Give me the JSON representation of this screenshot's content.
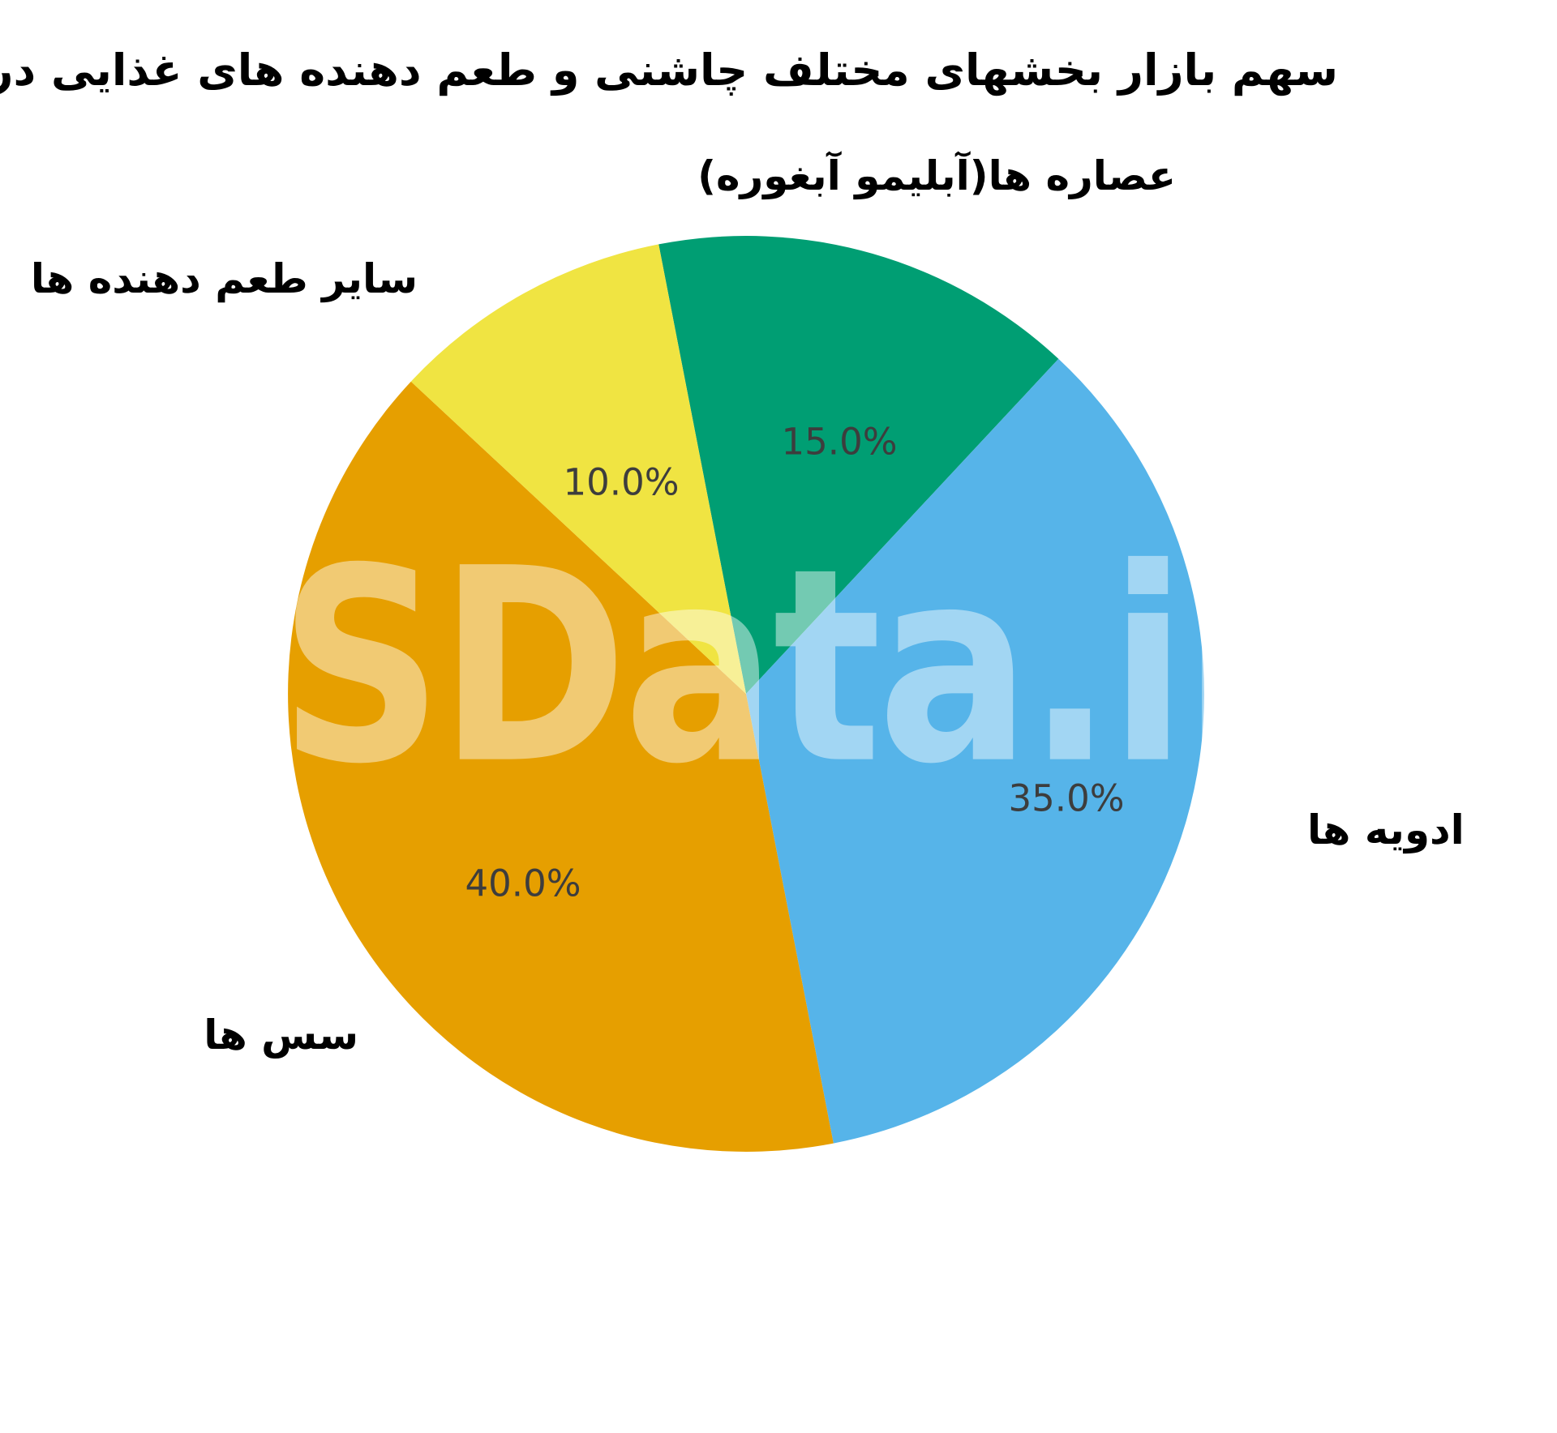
{
  "title": "سهم  بازار بخشهای مختلف چاشنی و طعم دهنده های غذایی در ایران",
  "watermark": "SData.ir",
  "chart_data": {
    "type": "pie",
    "title": "سهم  بازار بخشهای مختلف چاشنی و طعم دهنده های غذایی در ایران",
    "legend": "none",
    "start_angle_deg": 101,
    "direction": "clockwise",
    "slices": [
      {
        "label": "عصاره ها(آبلیمو آبغوره)",
        "value": 15.0,
        "pct_label": "15.0%",
        "color": "#009E73"
      },
      {
        "label": "ادویه ها",
        "value": 35.0,
        "pct_label": "35.0%",
        "color": "#56B4E9"
      },
      {
        "label": "سس ها",
        "value": 40.0,
        "pct_label": "40.0%",
        "color": "#E69F00"
      },
      {
        "label": "سایر طعم دهنده ها",
        "value": 10.0,
        "pct_label": "10.0%",
        "color": "#F0E442"
      }
    ]
  }
}
